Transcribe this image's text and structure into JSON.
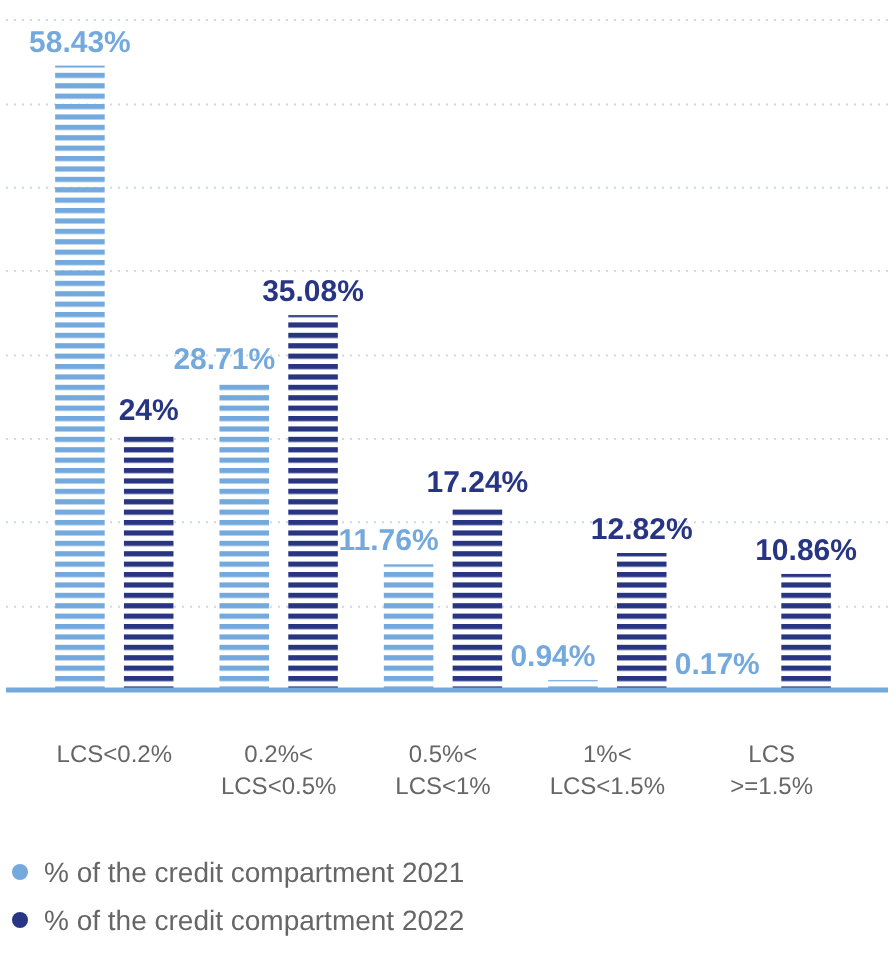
{
  "chart_data": {
    "type": "bar",
    "categories": [
      "LCS<0.2%",
      "0.2%<\nLCS<0.5%",
      "0.5%<\nLCS<1%",
      "1%<\nLCS<1.5%",
      "LCS\n>=1.5%"
    ],
    "series": [
      {
        "name": "% of the credit compartment 2021",
        "color": "#74a9de",
        "values": [
          58.43,
          28.71,
          11.76,
          0.94,
          0.17
        ],
        "value_labels": [
          "58.43%",
          "28.71%",
          "11.76%",
          "0.94%",
          "0.17%"
        ]
      },
      {
        "name": "% of the credit compartment 2022",
        "color": "#283583",
        "values": [
          24,
          35.08,
          17.24,
          12.82,
          10.86
        ],
        "value_labels": [
          "24%",
          "35.08%",
          "17.24%",
          "12.82%",
          "10.86%"
        ]
      }
    ],
    "yticks": [
      {
        "value": 7.8,
        "label": null
      },
      {
        "value": 15.7,
        "label": null
      },
      {
        "value": 23.5,
        "label": null
      },
      {
        "value": 31.3,
        "label": null
      },
      {
        "value": 39.2,
        "label": null
      },
      {
        "value": 47,
        "label": null
      },
      {
        "value": 54.8,
        "label": null
      },
      {
        "value": 62.7,
        "label": null
      }
    ],
    "grid": "y",
    "legend": "bottom",
    "tick_labels": "x"
  }
}
